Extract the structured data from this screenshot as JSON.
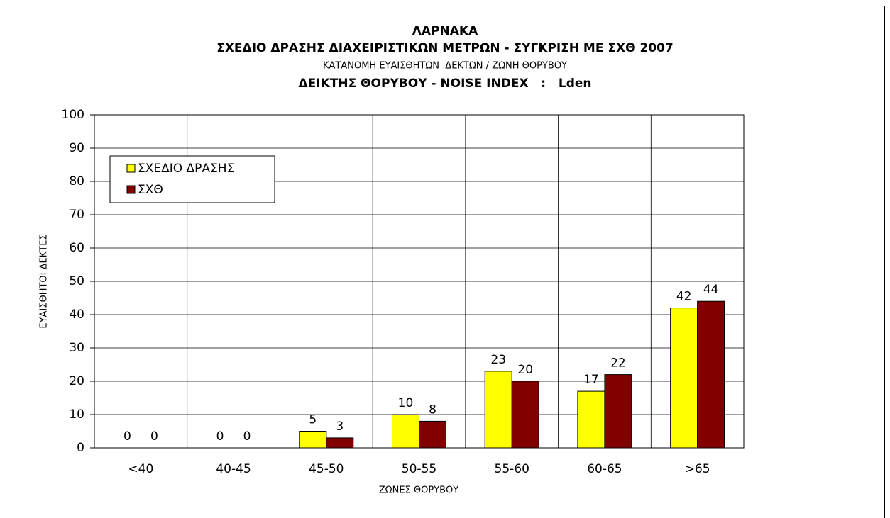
{
  "chart_data": {
    "type": "bar",
    "title": "ΛΑΡΝΑΚΑ",
    "subtitles": [
      "ΣΧΕΔΙΟ ΔΡΑΣΗΣ ΔΙΑΧΕΙΡΙΣΤΙΚΩΝ ΜΕΤΡΩΝ - ΣΥΓΚΡΙΣΗ ΜΕ ΣΧΘ 2007",
      "ΚΑΤΑΝΟΜΗ ΕΥΑΙΣΘΗΤΩΝ  ΔΕΚΤΩΝ / ΖΩΝΗ ΘΟΡΥΒΟΥ",
      "ΔΕΙΚΤΗΣ ΘΟΡΥΒΟΥ - NOISE INDEX   :   Lden"
    ],
    "x_label": "ΖΩΝΕΣ ΘΟΡΥΒΟΥ",
    "y_label": "ΕΥΑΙΣΘΗΤΟΙ ΔΕΚΤΕΣ",
    "categories": [
      "<40",
      "40-45",
      "45-50",
      "50-55",
      "55-60",
      "60-65",
      ">65"
    ],
    "series": [
      {
        "name": "ΣΧΕΔΙΟ ΔΡΑΣΗΣ",
        "color": "#ffff00",
        "values": [
          0,
          0,
          5,
          10,
          23,
          17,
          42
        ]
      },
      {
        "name": "ΣΧΘ",
        "color": "#800000",
        "values": [
          0,
          0,
          3,
          8,
          20,
          22,
          44
        ]
      }
    ],
    "ylim": [
      0,
      100
    ],
    "yticks": [
      0,
      10,
      20,
      30,
      40,
      50,
      60,
      70,
      80,
      90,
      100
    ],
    "grid": true,
    "legend": "upper left"
  }
}
